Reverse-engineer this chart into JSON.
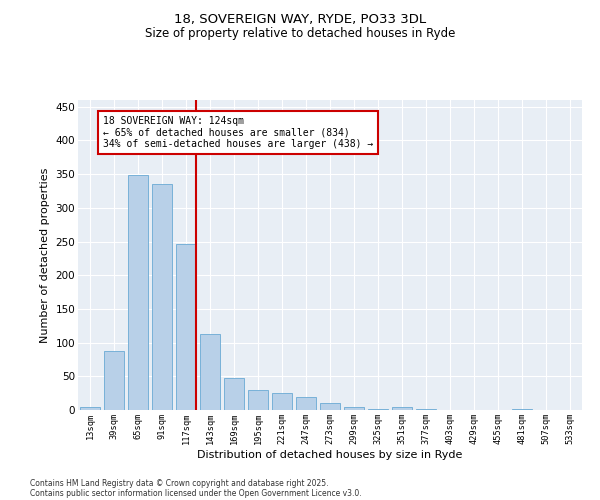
{
  "title1": "18, SOVEREIGN WAY, RYDE, PO33 3DL",
  "title2": "Size of property relative to detached houses in Ryde",
  "xlabel": "Distribution of detached houses by size in Ryde",
  "ylabel": "Number of detached properties",
  "bar_color": "#b8d0e8",
  "bar_edge_color": "#6aaad4",
  "background_color": "#e8eef5",
  "categories": [
    "13sqm",
    "39sqm",
    "65sqm",
    "91sqm",
    "117sqm",
    "143sqm",
    "169sqm",
    "195sqm",
    "221sqm",
    "247sqm",
    "273sqm",
    "299sqm",
    "325sqm",
    "351sqm",
    "377sqm",
    "403sqm",
    "429sqm",
    "455sqm",
    "481sqm",
    "507sqm",
    "533sqm"
  ],
  "values": [
    5,
    87,
    349,
    335,
    246,
    113,
    48,
    30,
    25,
    20,
    10,
    4,
    2,
    4,
    1,
    0,
    0,
    0,
    1,
    0,
    0
  ],
  "property_line_color": "#cc0000",
  "annotation_text": "18 SOVEREIGN WAY: 124sqm\n← 65% of detached houses are smaller (834)\n34% of semi-detached houses are larger (438) →",
  "ylim": [
    0,
    460
  ],
  "yticks": [
    0,
    50,
    100,
    150,
    200,
    250,
    300,
    350,
    400,
    450
  ],
  "footer1": "Contains HM Land Registry data © Crown copyright and database right 2025.",
  "footer2": "Contains public sector information licensed under the Open Government Licence v3.0."
}
